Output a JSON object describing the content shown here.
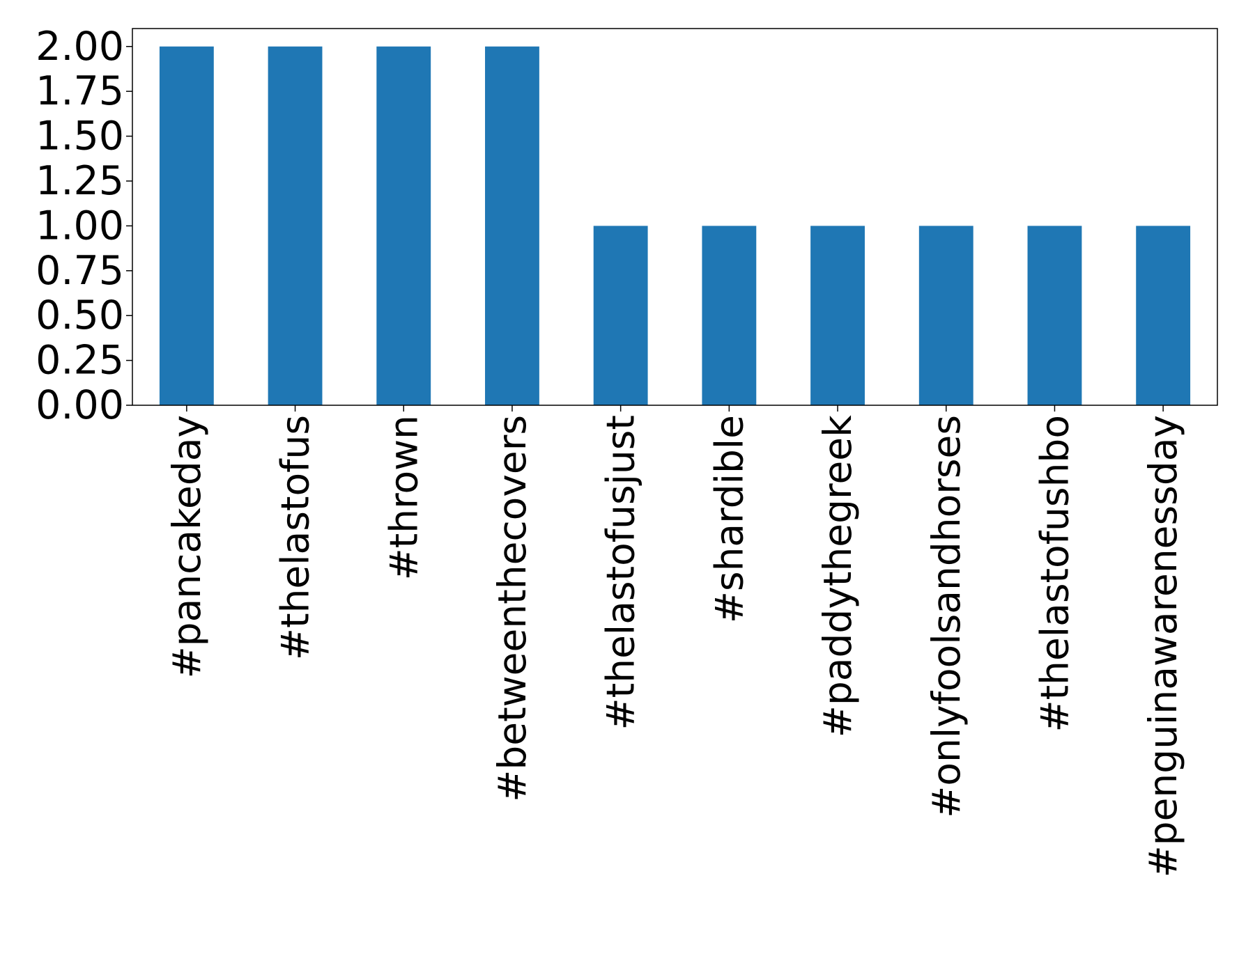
{
  "chart_data": {
    "type": "bar",
    "categories": [
      "#pancakeday",
      "#thelastofus",
      "#thrown",
      "#betweenthecovers",
      "#thelastofusjust",
      "#shardible",
      "#paddythegreek",
      "#onlyfoolsandhorses",
      "#thelastofushbo",
      "#penguinawarenessday"
    ],
    "values": [
      2,
      2,
      2,
      2,
      1,
      1,
      1,
      1,
      1,
      1
    ],
    "color": "#1f77b4",
    "ylim": [
      0,
      2.1
    ],
    "yticks": [
      {
        "value": 0,
        "label": "0.00"
      },
      {
        "value": 0.25,
        "label": "0.25"
      },
      {
        "value": 0.5,
        "label": "0.50"
      },
      {
        "value": 0.75,
        "label": "0.75"
      },
      {
        "value": 1,
        "label": "1.00"
      },
      {
        "value": 1.25,
        "label": "1.25"
      },
      {
        "value": 1.5,
        "label": "1.50"
      },
      {
        "value": 1.75,
        "label": "1.75"
      },
      {
        "value": 2,
        "label": "2.00"
      }
    ],
    "grid": false
  }
}
